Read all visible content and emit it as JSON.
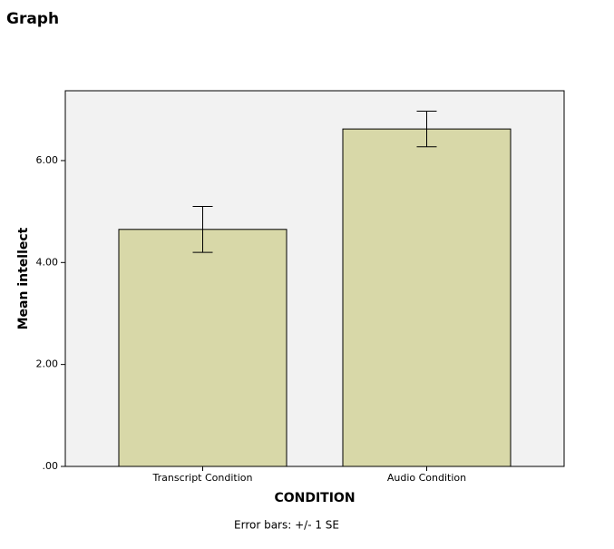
{
  "page_title": "Graph",
  "chart_data": {
    "type": "bar",
    "categories": [
      "Transcript Condition",
      "Audio Condition"
    ],
    "values": [
      4.65,
      6.62
    ],
    "errors": [
      0.45,
      0.35
    ],
    "color": "#d8d8a8",
    "x_label": "CONDITION",
    "y_label": "Mean intellect",
    "annotation": "Error bars: +/- 1 SE",
    "ylim": [
      0,
      7.37
    ],
    "yticks": [
      {
        "value": 0,
        "label": ".00"
      },
      {
        "value": 2,
        "label": "2.00"
      },
      {
        "value": 4,
        "label": "4.00"
      },
      {
        "value": 6,
        "label": "6.00"
      }
    ],
    "grid": false
  }
}
